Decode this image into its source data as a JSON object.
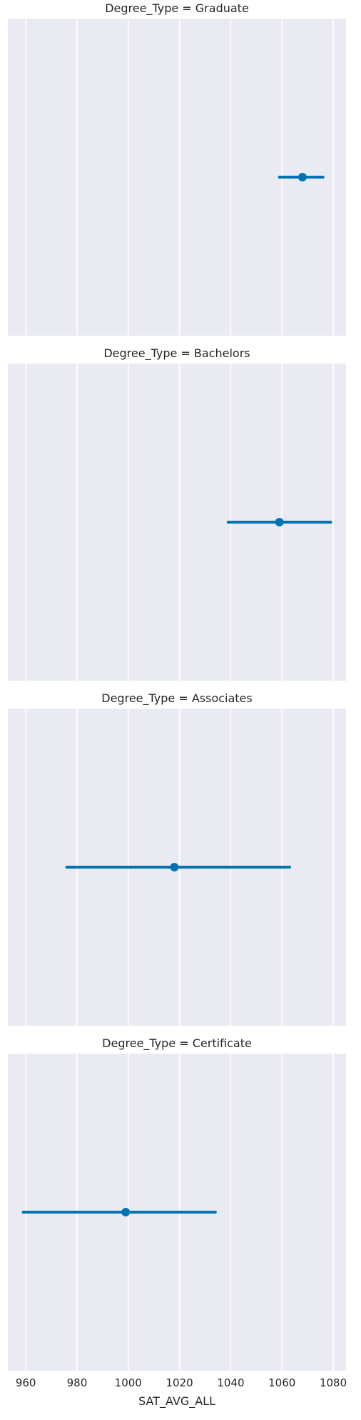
{
  "chart_data": {
    "type": "pointplot",
    "facet_variable": "Degree_Type",
    "xlabel": "SAT_AVG_ALL",
    "xlim": [
      953,
      1085
    ],
    "xticks": [
      960,
      980,
      1000,
      1020,
      1040,
      1060,
      1080
    ],
    "grid": true,
    "color": "#0173b2",
    "background_color": "#eaeaf2",
    "grid_color": "#ffffff",
    "panels": [
      {
        "title": "Degree_Type = Graduate",
        "mean": 1068,
        "ci": [
          1059,
          1076
        ]
      },
      {
        "title": "Degree_Type = Bachelors",
        "mean": 1059,
        "ci": [
          1039,
          1079
        ]
      },
      {
        "title": "Degree_Type = Associates",
        "mean": 1018,
        "ci": [
          976,
          1063
        ]
      },
      {
        "title": "Degree_Type = Certificate",
        "mean": 999,
        "ci": [
          959,
          1034
        ]
      }
    ]
  }
}
